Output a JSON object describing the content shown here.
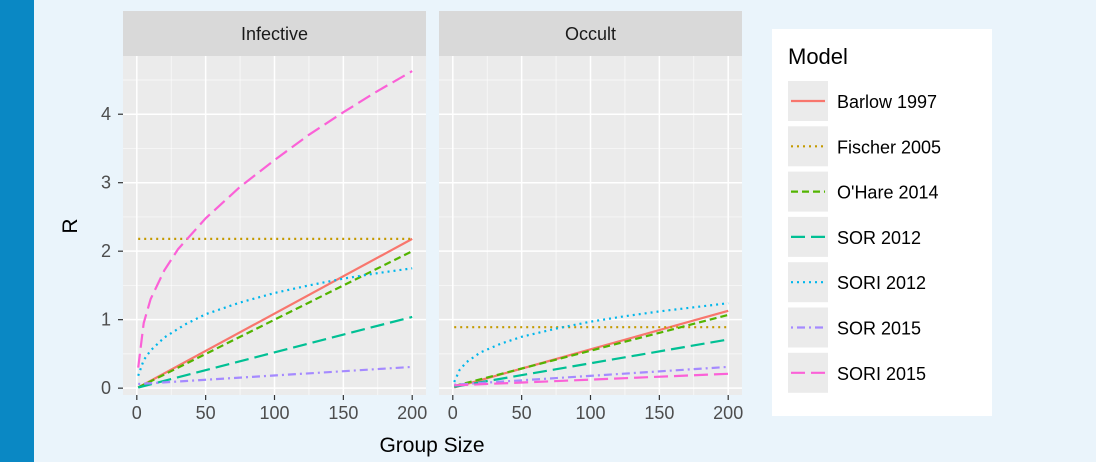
{
  "colors": {
    "accent_bar": "#0a88c4",
    "page_background": "#eaf4fb",
    "panel_background": "#ebebeb",
    "strip_background": "#d9d9d9",
    "grid_major": "#ffffff"
  },
  "chart_data": {
    "type": "line",
    "facets": [
      "Infective",
      "Occult"
    ],
    "xlabel": "Group Size",
    "ylabel": "R",
    "xlim": [
      0,
      200
    ],
    "ylim": [
      -0.1,
      4.85
    ],
    "x_ticks": [
      0,
      50,
      100,
      150,
      200
    ],
    "y_ticks": [
      0,
      1,
      2,
      3,
      4
    ],
    "grid": true,
    "legend": {
      "title": "Model",
      "placement": "right",
      "entries": [
        "Barlow 1997",
        "Fischer 2005",
        "O'Hare 2014",
        "SOR 2012",
        "SORI 2012",
        "SOR 2015",
        "SORI 2015"
      ]
    },
    "series": [
      {
        "name": "Barlow 1997",
        "color": "#f8766d",
        "dash": "solid",
        "panels": {
          "Infective": {
            "x": [
              1,
              200
            ],
            "y": [
              0.01,
              2.18
            ]
          },
          "Occult": {
            "x": [
              1,
              200
            ],
            "y": [
              0.01,
              1.13
            ]
          }
        }
      },
      {
        "name": "Fischer 2005",
        "color": "#c49a00",
        "dash": "dotted",
        "panels": {
          "Infective": {
            "x": [
              1,
              200
            ],
            "y": [
              2.18,
              2.18
            ]
          },
          "Occult": {
            "x": [
              1,
              200
            ],
            "y": [
              0.89,
              0.89
            ]
          }
        }
      },
      {
        "name": "O'Hare 2014",
        "color": "#53b400",
        "dash": "dashed",
        "panels": {
          "Infective": {
            "x": [
              1,
              200
            ],
            "y": [
              0.01,
              2.0
            ]
          },
          "Occult": {
            "x": [
              1,
              200
            ],
            "y": [
              0.03,
              1.07
            ]
          }
        }
      },
      {
        "name": "SOR 2012",
        "color": "#00c094",
        "dash": "longdash",
        "panels": {
          "Infective": {
            "x": [
              1,
              200
            ],
            "y": [
              0.01,
              1.04
            ]
          },
          "Occult": {
            "x": [
              1,
              200
            ],
            "y": [
              0.02,
              0.71
            ]
          }
        }
      },
      {
        "name": "SORI 2012",
        "color": "#00b6eb",
        "dash": "dotted",
        "panels": {
          "Infective": {
            "x": [
              1,
              5,
              10,
              20,
              35,
              50,
              75,
              100,
              125,
              150,
              175,
              200
            ],
            "y": [
              0.18,
              0.41,
              0.55,
              0.74,
              0.93,
              1.08,
              1.25,
              1.39,
              1.5,
              1.6,
              1.68,
              1.75
            ]
          },
          "Occult": {
            "x": [
              1,
              5,
              10,
              20,
              35,
              50,
              75,
              100,
              125,
              150,
              175,
              200
            ],
            "y": [
              0.09,
              0.27,
              0.38,
              0.52,
              0.65,
              0.75,
              0.87,
              0.97,
              1.05,
              1.12,
              1.18,
              1.24
            ]
          }
        }
      },
      {
        "name": "SOR 2015",
        "color": "#a58aff",
        "dash": "dotdash",
        "panels": {
          "Infective": {
            "x": [
              1,
              200
            ],
            "y": [
              0.06,
              0.31
            ]
          },
          "Occult": {
            "x": [
              1,
              200
            ],
            "y": [
              0.05,
              0.31
            ]
          }
        }
      },
      {
        "name": "SORI 2015",
        "color": "#fb61d7",
        "dash": "longdash",
        "panels": {
          "Infective": {
            "x": [
              1,
              5,
              10,
              20,
              30,
              50,
              75,
              100,
              125,
              150,
              175,
              200
            ],
            "y": [
              0.3,
              0.95,
              1.3,
              1.72,
              2.03,
              2.48,
              2.94,
              3.33,
              3.7,
              4.03,
              4.34,
              4.63
            ]
          },
          "Occult": {
            "x": [
              1,
              200
            ],
            "y": [
              0.04,
              0.21
            ]
          }
        }
      }
    ]
  }
}
